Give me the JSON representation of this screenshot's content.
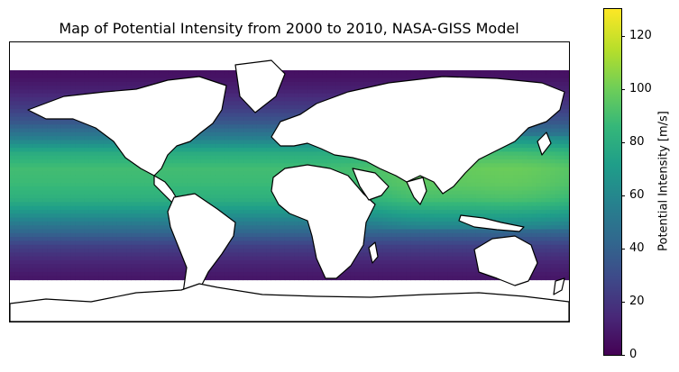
{
  "chart_data": {
    "type": "heatmap",
    "title": "Map of Potential Intensity from 2000 to 2010, NASA-GISS Model",
    "colorbar": {
      "label": "Potential Intensity [m/s]",
      "ticks": [
        "0",
        "20",
        "40",
        "60",
        "80",
        "100",
        "120"
      ],
      "range": [
        0,
        130
      ],
      "colormap": "viridis"
    },
    "map": {
      "projection": "PlateCarree",
      "extent_lon": [
        -180,
        180
      ],
      "extent_lat": [
        -90,
        90
      ],
      "coastlines": true,
      "land_color": "#ffffff"
    },
    "lat_profile": {
      "lat": [
        -60,
        -50,
        -40,
        -30,
        -20,
        -10,
        0,
        10,
        20,
        30,
        40,
        50,
        60,
        70
      ],
      "value": [
        8,
        14,
        25,
        45,
        65,
        82,
        88,
        90,
        80,
        55,
        35,
        22,
        12,
        6
      ]
    },
    "colors": {
      "colormap_stops": [
        "#440154",
        "#482878",
        "#3e4989",
        "#31688e",
        "#26828e",
        "#1f9e89",
        "#35b779",
        "#6ece58",
        "#b5de2b",
        "#fde725"
      ]
    }
  }
}
